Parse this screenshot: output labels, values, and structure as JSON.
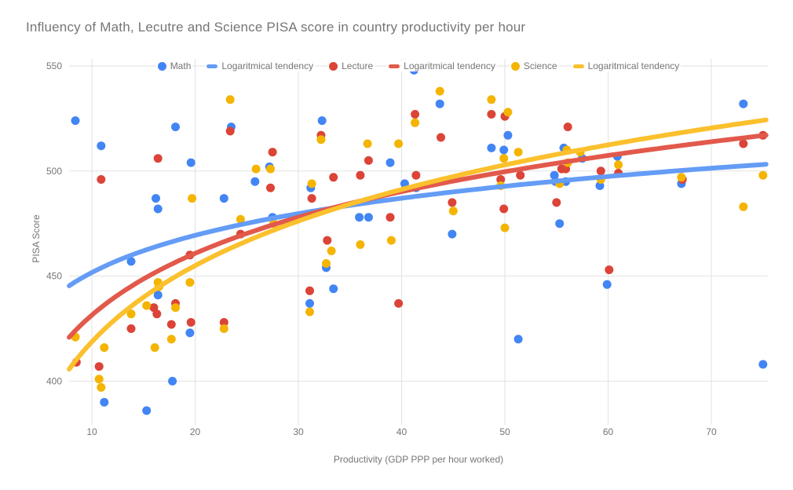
{
  "palette": {
    "math_dot": "#4285F4",
    "math_line": "#649CF6",
    "lecture_dot": "#DB4437",
    "lecture_line": "#E2594B",
    "science_dot": "#F4B400",
    "science_line": "#FBC02D",
    "grid": "#E2E2E2",
    "text": "#757575",
    "background": "#FFFFFF"
  },
  "legend": [
    {
      "label": "Math",
      "marker": "dot",
      "color": "#4285F4",
      "series": "Math"
    },
    {
      "label": "Logaritmical tendency",
      "marker": "dash",
      "color": "#649CF6",
      "series": "Math"
    },
    {
      "label": "Lecture",
      "marker": "dot",
      "color": "#DB4437",
      "series": "Lecture"
    },
    {
      "label": "Logaritmical tendency",
      "marker": "dash",
      "color": "#E2594B",
      "series": "Lecture"
    },
    {
      "label": "Science",
      "marker": "dot",
      "color": "#F4B400",
      "series": "Science"
    },
    {
      "label": "Logaritmical tendency",
      "marker": "dash",
      "color": "#FBC02D",
      "series": "Science"
    }
  ],
  "chart_data": {
    "type": "scatter",
    "title": "Influency of Math, Lecutre and Science PISA score in country productivity per hour",
    "xlabel": "Productivity (GDP PPP per hour worked)",
    "ylabel": "PISA Score",
    "x_ticks": [
      10,
      20,
      30,
      40,
      50,
      60,
      70
    ],
    "y_ticks": [
      550,
      500,
      450,
      400
    ],
    "xlim": [
      7.8,
      75.5
    ],
    "ylim": [
      379,
      553
    ],
    "grid": true,
    "legend_position": "top",
    "series": [
      {
        "name": "Math",
        "color": "#4285F4",
        "points": [
          [
            8.4,
            524
          ],
          [
            10.9,
            512
          ],
          [
            11.2,
            390
          ],
          [
            13.8,
            457
          ],
          [
            15.3,
            386
          ],
          [
            16.2,
            487
          ],
          [
            16.4,
            482
          ],
          [
            16.4,
            441
          ],
          [
            17.8,
            400
          ],
          [
            18.1,
            521
          ],
          [
            19.5,
            423
          ],
          [
            19.6,
            504
          ],
          [
            22.8,
            487
          ],
          [
            23.5,
            521
          ],
          [
            25.8,
            495
          ],
          [
            27.2,
            502
          ],
          [
            27.5,
            478
          ],
          [
            31.1,
            437
          ],
          [
            31.2,
            492
          ],
          [
            32.3,
            524
          ],
          [
            32.7,
            454
          ],
          [
            33.4,
            444
          ],
          [
            35.9,
            478
          ],
          [
            36.8,
            478
          ],
          [
            38.9,
            504
          ],
          [
            40.3,
            494
          ],
          [
            41.2,
            548
          ],
          [
            41.4,
            492
          ],
          [
            43.7,
            532
          ],
          [
            44.9,
            470
          ],
          [
            48.7,
            511
          ],
          [
            49.9,
            510
          ],
          [
            50.3,
            517
          ],
          [
            51.3,
            420
          ],
          [
            54.8,
            498
          ],
          [
            54.9,
            495
          ],
          [
            55.3,
            475
          ],
          [
            55.7,
            511
          ],
          [
            55.9,
            495
          ],
          [
            57.5,
            506
          ],
          [
            59.2,
            493
          ],
          [
            59.9,
            446
          ],
          [
            60.9,
            507
          ],
          [
            67.1,
            494
          ],
          [
            73.1,
            532
          ],
          [
            75,
            408
          ]
        ]
      },
      {
        "name": "Lecture",
        "color": "#DB4437",
        "points": [
          [
            8.5,
            409
          ],
          [
            10.7,
            407
          ],
          [
            10.9,
            496
          ],
          [
            13.8,
            425
          ],
          [
            16,
            435
          ],
          [
            16.3,
            432
          ],
          [
            16.4,
            506
          ],
          [
            17.7,
            427
          ],
          [
            18.1,
            437
          ],
          [
            19.5,
            460
          ],
          [
            19.6,
            428
          ],
          [
            22.8,
            428
          ],
          [
            23.4,
            519
          ],
          [
            24.4,
            470
          ],
          [
            27.3,
            492
          ],
          [
            27.5,
            509
          ],
          [
            31.1,
            443
          ],
          [
            31.3,
            487
          ],
          [
            32.2,
            517
          ],
          [
            32.8,
            467
          ],
          [
            33.4,
            497
          ],
          [
            36,
            498
          ],
          [
            36.8,
            505
          ],
          [
            38.9,
            478
          ],
          [
            39.7,
            437
          ],
          [
            41.3,
            527
          ],
          [
            41.4,
            498
          ],
          [
            43.8,
            516
          ],
          [
            44.9,
            485
          ],
          [
            48.7,
            527
          ],
          [
            49.6,
            496
          ],
          [
            49.9,
            482
          ],
          [
            50,
            526
          ],
          [
            51.5,
            498
          ],
          [
            55,
            485
          ],
          [
            55.5,
            501
          ],
          [
            55.9,
            501
          ],
          [
            56.1,
            521
          ],
          [
            59.3,
            500
          ],
          [
            60.1,
            453
          ],
          [
            61,
            499
          ],
          [
            67.2,
            496
          ],
          [
            73.1,
            513
          ],
          [
            75,
            517
          ]
        ]
      },
      {
        "name": "Science",
        "color": "#F4B400",
        "points": [
          [
            8.4,
            421
          ],
          [
            10.7,
            401
          ],
          [
            10.9,
            397
          ],
          [
            11.2,
            416
          ],
          [
            13.8,
            432
          ],
          [
            15.3,
            436
          ],
          [
            16.1,
            416
          ],
          [
            16.4,
            447
          ],
          [
            16.5,
            445
          ],
          [
            17.7,
            420
          ],
          [
            18.1,
            435
          ],
          [
            19.5,
            447
          ],
          [
            19.7,
            487
          ],
          [
            22.8,
            425
          ],
          [
            23.4,
            534
          ],
          [
            24.4,
            477
          ],
          [
            25.9,
            501
          ],
          [
            27.3,
            501
          ],
          [
            27.6,
            475
          ],
          [
            31.1,
            433
          ],
          [
            31.3,
            494
          ],
          [
            32.2,
            515
          ],
          [
            32.7,
            456
          ],
          [
            33.2,
            462
          ],
          [
            36,
            465
          ],
          [
            36.7,
            513
          ],
          [
            39,
            467
          ],
          [
            39.7,
            513
          ],
          [
            41.3,
            523
          ],
          [
            43.7,
            538
          ],
          [
            45,
            481
          ],
          [
            48.7,
            534
          ],
          [
            49.6,
            493
          ],
          [
            49.9,
            506
          ],
          [
            50,
            473
          ],
          [
            50.3,
            528
          ],
          [
            51.3,
            509
          ],
          [
            55.3,
            494
          ],
          [
            56,
            510
          ],
          [
            56.1,
            504
          ],
          [
            57.3,
            509
          ],
          [
            59.3,
            496
          ],
          [
            61,
            503
          ],
          [
            67.1,
            497
          ],
          [
            73.1,
            483
          ],
          [
            75,
            498
          ]
        ]
      }
    ],
    "trendlines": [
      {
        "name": "Logaritmical tendency",
        "series": "Math",
        "fit": "logarithmic",
        "a": 393.0,
        "b": 25.5,
        "color": "#649CF6",
        "y_at_x8": 446,
        "y_at_x75": 503
      },
      {
        "name": "Logaritmical tendency",
        "series": "Lecture",
        "fit": "logarithmic",
        "a": 333.8,
        "b": 42.4,
        "color": "#E2594B",
        "y_at_x8": 422,
        "y_at_x75": 517
      },
      {
        "name": "Logaritmical tendency",
        "series": "Science",
        "fit": "logarithmic",
        "a": 298.3,
        "b": 52.3,
        "color": "#FBC02D",
        "y_at_x8": 407,
        "y_at_x75": 524
      }
    ]
  }
}
